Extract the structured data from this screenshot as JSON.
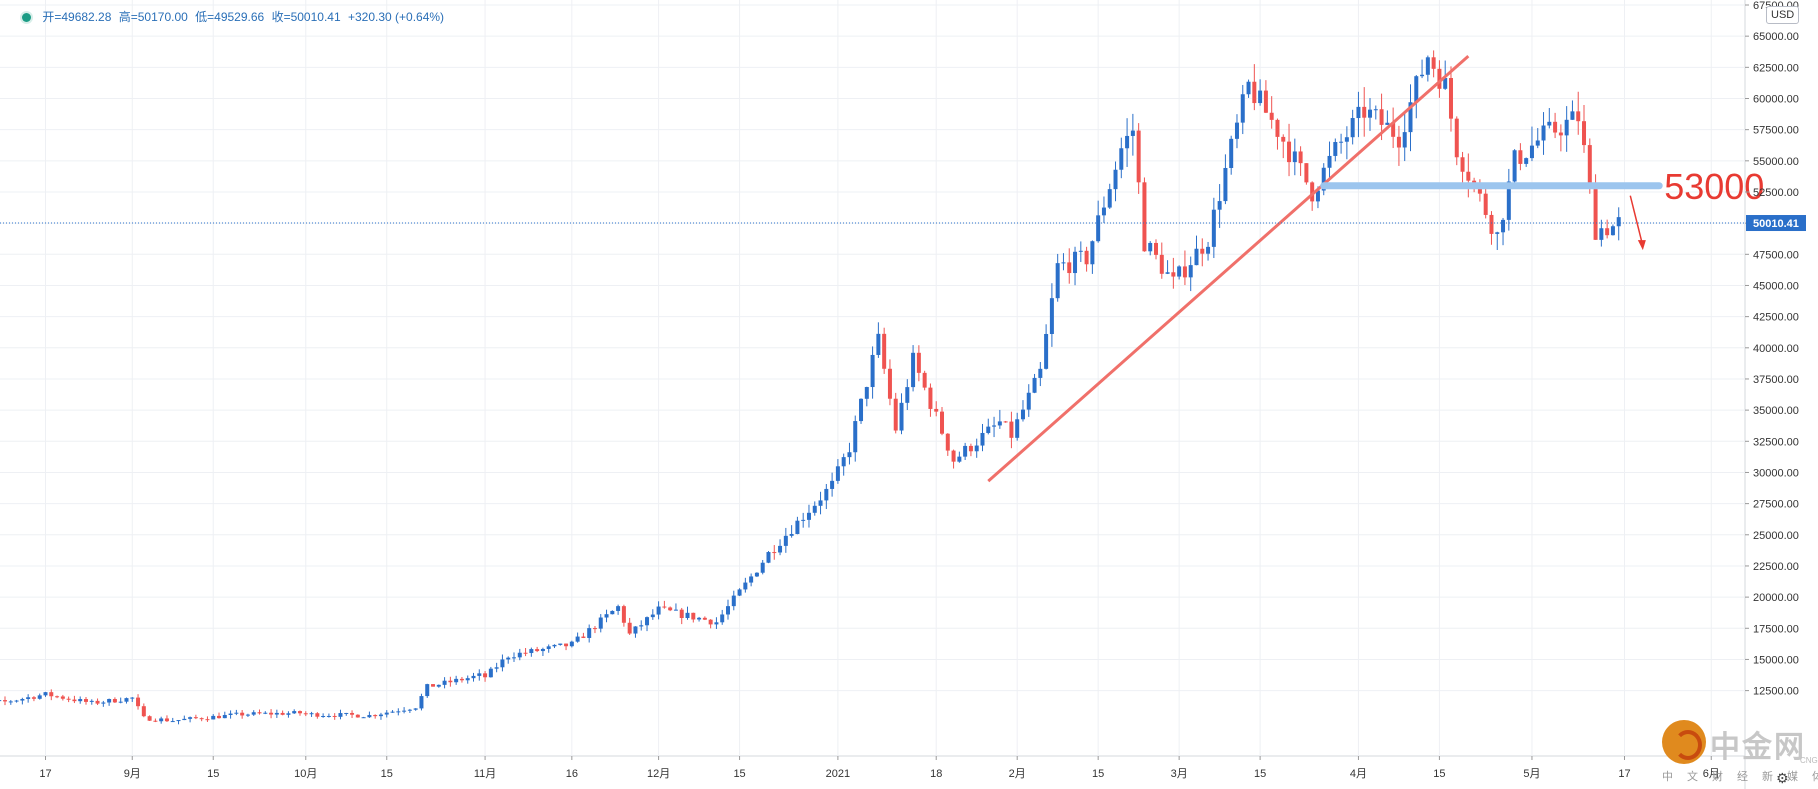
{
  "ohlc_bar": {
    "open": "开=49682.28",
    "high": "高=50170.00",
    "low": "低=49529.66",
    "close": "收=50010.41",
    "change": "+320.30 (+0.64%)"
  },
  "currency": "USD",
  "annotation_text": "53000",
  "last_price_label": "50010.41",
  "watermark": {
    "cn": "中金网",
    "en": "CNGOLD.COM.CN",
    "sub": "中文财经新媒体"
  },
  "colors": {
    "up": "#2a6fc9",
    "down": "#ef5350",
    "trendline": "#f0706a",
    "level": "#9cc5ee",
    "price_line": "#2a6fc9",
    "annotation": "#e83a32",
    "grid": "#eef0f4"
  },
  "chart_data": {
    "type": "candlestick",
    "ylim": [
      9500,
      67500
    ],
    "y_ticks": [
      12500,
      15000,
      17500,
      20000,
      22500,
      25000,
      27500,
      30000,
      32500,
      35000,
      37500,
      40000,
      42500,
      45000,
      47500,
      50000,
      52500,
      55000,
      57500,
      60000,
      62500,
      65000,
      67500
    ],
    "y_tick_labels": [
      "12500.00",
      "15000.00",
      "17500.00",
      "20000.00",
      "22500.00",
      "25000.00",
      "27500.00",
      "30000.00",
      "32500.00",
      "35000.00",
      "37500.00",
      "40000.00",
      "42500.00",
      "45000.00",
      "47500.00",
      "50000.00",
      "52500.00",
      "55000.00",
      "57500.00",
      "60000.00",
      "62500.00",
      "65000.00",
      "67500.00"
    ],
    "x_ticks": [
      {
        "label": "17",
        "date": "2020-08-17"
      },
      {
        "label": "9月",
        "date": "2020-09-01"
      },
      {
        "label": "15",
        "date": "2020-09-15"
      },
      {
        "label": "10月",
        "date": "2020-10-01"
      },
      {
        "label": "15",
        "date": "2020-10-15"
      },
      {
        "label": "11月",
        "date": "2020-11-01"
      },
      {
        "label": "16",
        "date": "2020-11-16"
      },
      {
        "label": "12月",
        "date": "2020-12-01"
      },
      {
        "label": "15",
        "date": "2020-12-15"
      },
      {
        "label": "2021",
        "date": "2021-01-01"
      },
      {
        "label": "18",
        "date": "2021-01-18"
      },
      {
        "label": "2月",
        "date": "2021-02-01"
      },
      {
        "label": "15",
        "date": "2021-02-15"
      },
      {
        "label": "3月",
        "date": "2021-03-01"
      },
      {
        "label": "15",
        "date": "2021-03-15"
      },
      {
        "label": "4月",
        "date": "2021-04-01"
      },
      {
        "label": "15",
        "date": "2021-04-15"
      },
      {
        "label": "5月",
        "date": "2021-05-01"
      },
      {
        "label": "17",
        "date": "2021-05-17"
      },
      {
        "label": "6月",
        "date": "2021-06-01"
      }
    ],
    "start_date": "2020-08-01",
    "anchors": [
      [
        "2020-08-01",
        11300
      ],
      [
        "2020-08-10",
        11600
      ],
      [
        "2020-08-17",
        12200
      ],
      [
        "2020-08-25",
        11500
      ],
      [
        "2020-09-01",
        11900
      ],
      [
        "2020-09-03",
        10300
      ],
      [
        "2020-09-08",
        10100
      ],
      [
        "2020-09-20",
        10600
      ],
      [
        "2020-09-30",
        10700
      ],
      [
        "2020-10-01",
        10600
      ],
      [
        "2020-10-12",
        10500
      ],
      [
        "2020-10-20",
        11200
      ],
      [
        "2020-10-22",
        12800
      ],
      [
        "2020-10-31",
        13700
      ],
      [
        "2020-11-01",
        13600
      ],
      [
        "2020-11-05",
        15300
      ],
      [
        "2020-11-16",
        16200
      ],
      [
        "2020-11-24",
        19200
      ],
      [
        "2020-11-26",
        17000
      ],
      [
        "2020-12-01",
        19000
      ],
      [
        "2020-12-11",
        18000
      ],
      [
        "2020-12-16",
        21000
      ],
      [
        "2020-12-20",
        23500
      ],
      [
        "2020-12-31",
        29000
      ],
      [
        "2021-01-03",
        32000
      ],
      [
        "2021-01-07",
        39000
      ],
      [
        "2021-01-08",
        40600
      ],
      [
        "2021-01-11",
        33500
      ],
      [
        "2021-01-14",
        39000
      ],
      [
        "2021-01-21",
        31000
      ],
      [
        "2021-01-29",
        34000
      ],
      [
        "2021-01-31",
        33000
      ],
      [
        "2021-02-05",
        38000
      ],
      [
        "2021-02-08",
        46500
      ],
      [
        "2021-02-13",
        47200
      ],
      [
        "2021-02-19",
        56000
      ],
      [
        "2021-02-21",
        57500
      ],
      [
        "2021-02-23",
        48500
      ],
      [
        "2021-02-28",
        45200
      ],
      [
        "2021-03-06",
        48800
      ],
      [
        "2021-03-10",
        56000
      ],
      [
        "2021-03-13",
        61000
      ],
      [
        "2021-03-18",
        57500
      ],
      [
        "2021-03-24",
        52500
      ],
      [
        "2021-03-28",
        55800
      ],
      [
        "2021-04-02",
        59000
      ],
      [
        "2021-04-08",
        57000
      ],
      [
        "2021-04-13",
        63500
      ],
      [
        "2021-04-16",
        61000
      ],
      [
        "2021-04-18",
        56000
      ],
      [
        "2021-04-25",
        49000
      ],
      [
        "2021-04-28",
        55000
      ],
      [
        "2021-05-03",
        57000
      ],
      [
        "2021-05-09",
        58500
      ],
      [
        "2021-05-10",
        55800
      ],
      [
        "2021-05-12",
        49500
      ],
      [
        "2021-05-15",
        49700
      ],
      [
        "2021-05-16",
        50010
      ]
    ],
    "trendline": {
      "from": [
        "2021-01-27",
        29300
      ],
      "to": [
        "2021-04-20",
        63400
      ]
    },
    "level": {
      "value": 53000,
      "from": "2021-03-26",
      "to": "2021-05-23"
    },
    "last_price": 50010.41,
    "arrow": {
      "from": [
        "2021-05-18",
        52200
      ],
      "to": [
        "2021-05-20",
        48000
      ]
    }
  }
}
